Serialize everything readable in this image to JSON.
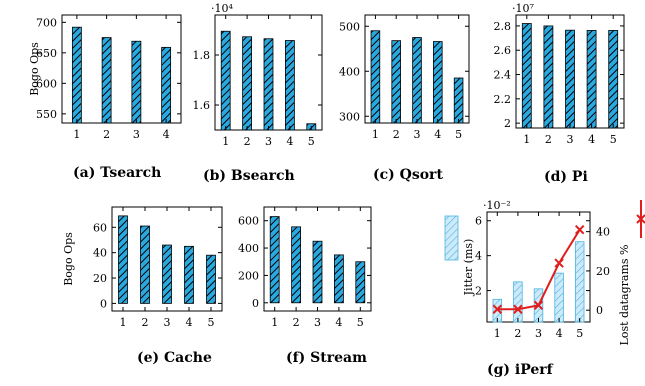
{
  "chart_data": [
    {
      "id": "tsearch",
      "type": "bar",
      "caption": "(a) Tsearch",
      "ylabel": "Bogo Ops",
      "categories": [
        "1",
        "2",
        "3",
        "4"
      ],
      "values": [
        692,
        675,
        669,
        659
      ],
      "ylim": [
        535,
        712
      ],
      "yticks": [
        "550",
        "600",
        "650",
        "700"
      ],
      "multiplier": ""
    },
    {
      "id": "bsearch",
      "type": "bar",
      "caption": "(b) Bsearch",
      "ylabel": "",
      "categories": [
        "1",
        "2",
        "3",
        "4",
        "5"
      ],
      "values": [
        1.895,
        1.873,
        1.865,
        1.858,
        1.525
      ],
      "ylim": [
        1.5,
        1.96
      ],
      "yticks": [
        "1.6",
        "1.8"
      ],
      "multiplier": "·10⁴"
    },
    {
      "id": "qsort",
      "type": "bar",
      "caption": "(c) Qsort",
      "ylabel": "",
      "categories": [
        "1",
        "2",
        "3",
        "4",
        "5"
      ],
      "values": [
        490,
        468,
        475,
        466,
        385
      ],
      "ylim": [
        285,
        525
      ],
      "yticks": [
        "300",
        "400",
        "500"
      ],
      "multiplier": ""
    },
    {
      "id": "pi",
      "type": "bar",
      "caption": "(d) Pi",
      "ylabel": "",
      "categories": [
        "1",
        "2",
        "3",
        "4",
        "5"
      ],
      "values": [
        2.82,
        2.8,
        2.765,
        2.763,
        2.763
      ],
      "ylim": [
        1.96,
        2.89
      ],
      "yticks": [
        "2",
        "2.2",
        "2.4",
        "2.6",
        "2.8"
      ],
      "multiplier": "·10⁷"
    },
    {
      "id": "cache",
      "type": "bar",
      "caption": "(e) Cache",
      "ylabel": "Bogo Ops",
      "categories": [
        "1",
        "2",
        "3",
        "4",
        "5"
      ],
      "values": [
        69,
        61,
        46,
        45,
        38
      ],
      "ylim": [
        -6,
        76
      ],
      "yticks": [
        "0",
        "20",
        "40",
        "60"
      ],
      "multiplier": ""
    },
    {
      "id": "stream",
      "type": "bar",
      "caption": "(f) Stream",
      "ylabel": "",
      "categories": [
        "1",
        "2",
        "3",
        "4",
        "5"
      ],
      "values": [
        630,
        555,
        450,
        350,
        300
      ],
      "ylim": [
        -60,
        700
      ],
      "yticks": [
        "0",
        "200",
        "400",
        "600"
      ],
      "multiplier": ""
    },
    {
      "id": "iperf",
      "type": "bar+line",
      "caption": "(g) iPerf",
      "ylabel": "Jitter (ms)",
      "y2label": "Lost datagrams %",
      "categories": [
        "1",
        "2",
        "3",
        "4",
        "5"
      ],
      "values": [
        1.5,
        2.5,
        2.1,
        3.0,
        4.8
      ],
      "ylim": [
        0.2,
        6.5
      ],
      "yticks": [
        "2",
        "4",
        "6"
      ],
      "multiplier": "·10⁻²",
      "line_values": [
        0.5,
        0.5,
        2.5,
        24,
        41
      ],
      "y2lim": [
        -6,
        50
      ],
      "y2ticks": [
        "0",
        "20",
        "40"
      ]
    }
  ]
}
